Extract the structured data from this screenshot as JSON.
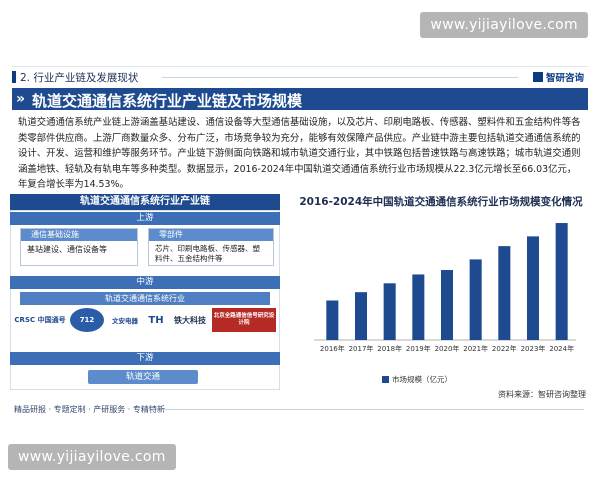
{
  "watermark": {
    "top": "www.yijiayilove.com",
    "bottom": "www.yijiayilove.com"
  },
  "header": {
    "section": "2. 行业产业链及发展现状",
    "brand": "智研咨询"
  },
  "title": "轨道交通通信系统行业产业链及市场规模",
  "paragraph": "轨道交通通信系统产业链上游涵盖基站建设、通信设备等大型通信基础设施，以及芯片、印刷电路板、传感器、塑料件和五金结构件等各类零部件供应商。上游厂商数量众多、分布广泛，市场竞争较为充分，能够有效保障产品供应。产业链中游主要包括轨道交通通信系统的设计、开发、运营和维护等服务环节。产业链下游侧面向铁路和城市轨道交通行业，其中铁路包括普速铁路与高速铁路；城市轨道交通则涵盖地铁、轻轨及有轨电车等多种类型。数据显示，2016-2024年中国轨道交通通信系统行业市场规模从22.3亿元增长至66.03亿元，年复合增长率为14.53%。",
  "chain": {
    "title": "轨道交通通信系统行业产业链",
    "upstream": "上游",
    "box1": {
      "head": "通信基础设施",
      "body": "基站建设、通信设备等"
    },
    "box2": {
      "head": "零部件",
      "body": "芯片、印刷电路板、传感器、塑料件、五金结构件等"
    },
    "midstream": "中游",
    "mid_sub": "轨道交通通信系统行业",
    "logos": [
      "CRSC 中国通号",
      "712",
      "文安电器",
      "TH",
      "铁大科技",
      "北京全路通信信号研究设计院"
    ],
    "downstream": "下游",
    "down_item": "轨道交通"
  },
  "chart_data": {
    "type": "bar",
    "title": "2016-2024年中国轨道交通通信系统行业市场规模变化情况",
    "categories": [
      "2016年",
      "2017年",
      "2018年",
      "2019年",
      "2020年",
      "2021年",
      "2022年",
      "2023年",
      "2024年"
    ],
    "series": [
      {
        "name": "市场规模（亿元）",
        "values": [
          22.3,
          27,
          32,
          37,
          39.5,
          45.5,
          53,
          58.5,
          66.03
        ]
      }
    ],
    "ylim": [
      0,
      70
    ],
    "grid": false,
    "legend": "bottom",
    "bar_color": "#1e4a8f"
  },
  "source": "资料来源：智研咨询整理",
  "footer": "精品研报 · 专题定制 · 产研服务 · 专精特新"
}
